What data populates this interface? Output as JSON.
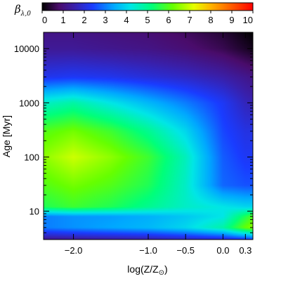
{
  "chart_data": {
    "type": "heatmap",
    "title": "",
    "xlabel_main": "log(Z/Z",
    "xlabel_sun": "⊙",
    "xlabel_end": ")",
    "ylabel_main": "Age ",
    "ylabel_unit": "[Myr]",
    "x_ticks": [
      {
        "value": -2.0,
        "label": "−2.0"
      },
      {
        "value": -1.0,
        "label": "−1.0"
      },
      {
        "value": -0.5,
        "label": "−0.5"
      },
      {
        "value": 0.0,
        "label": "0.0"
      },
      {
        "value": 0.3,
        "label": "0.3"
      }
    ],
    "y_ticks": [
      {
        "value": 10,
        "label": "10"
      },
      {
        "value": 100,
        "label": "100"
      },
      {
        "value": 1000,
        "label": "1000"
      },
      {
        "value": 10000,
        "label": "10000"
      }
    ],
    "y_scale": "log",
    "xlim": [
      -2.4,
      0.4
    ],
    "ylim": [
      3,
      20000
    ],
    "colorbar": {
      "symbol": "β",
      "subscript": "λ,0",
      "range": [
        0,
        10
      ],
      "ticks": [
        "0",
        "1",
        "2",
        "3",
        "4",
        "5",
        "6",
        "7",
        "8",
        "9",
        "10"
      ],
      "colormap": "rainbow",
      "placement": "top"
    },
    "approx_values": {
      "x": [
        -2.4,
        -2.0,
        -1.5,
        -1.0,
        -0.5,
        0.0,
        0.3,
        0.4
      ],
      "y": [
        3,
        5,
        8,
        12,
        30,
        100,
        300,
        1000,
        3000,
        10000,
        20000
      ],
      "z": [
        [
          1.2,
          1.3,
          1.4,
          1.5,
          1.7,
          1.9,
          2.2,
          2.4
        ],
        [
          3.0,
          3.2,
          3.4,
          3.6,
          4.0,
          4.8,
          6.2,
          6.5
        ],
        [
          3.0,
          3.2,
          3.3,
          3.5,
          3.8,
          4.2,
          5.5,
          6.0
        ],
        [
          5.5,
          5.8,
          5.5,
          5.0,
          4.5,
          4.2,
          4.0,
          4.0
        ],
        [
          6.0,
          6.3,
          6.0,
          5.5,
          4.5,
          2.8,
          2.6,
          2.6
        ],
        [
          6.5,
          7.0,
          6.5,
          5.8,
          4.6,
          2.7,
          2.3,
          2.3
        ],
        [
          6.0,
          6.3,
          5.8,
          5.0,
          4.0,
          2.5,
          2.1,
          2.1
        ],
        [
          4.5,
          4.8,
          4.2,
          3.6,
          3.0,
          2.3,
          1.7,
          1.6
        ],
        [
          2.2,
          2.3,
          2.2,
          2.0,
          1.8,
          1.5,
          1.2,
          1.1
        ],
        [
          1.3,
          1.3,
          1.2,
          1.1,
          0.9,
          0.6,
          0.3,
          0.2
        ],
        [
          1.1,
          1.1,
          1.0,
          0.9,
          0.7,
          0.4,
          0.1,
          0.0
        ]
      ]
    }
  }
}
